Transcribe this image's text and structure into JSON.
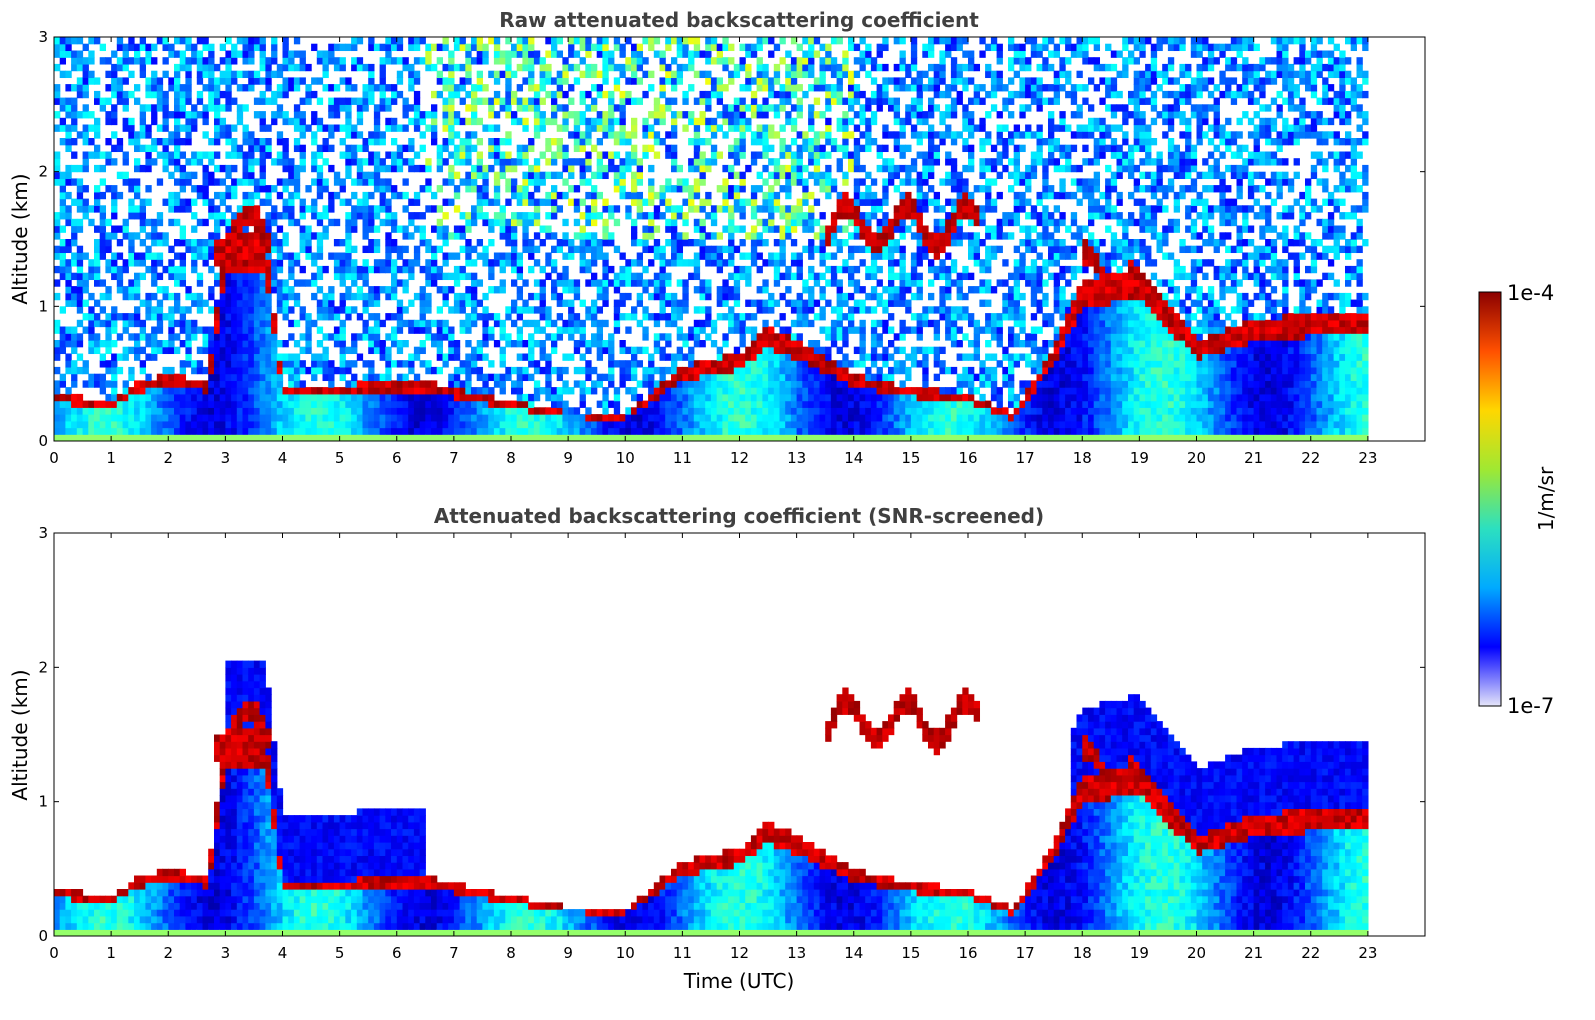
{
  "chart_data": [
    {
      "type": "heatmap",
      "title": "Raw attenuated backscattering coefficient",
      "xlabel": "",
      "ylabel": "Altitude (km)",
      "xlim": [
        0,
        24
      ],
      "ylim": [
        0,
        3
      ],
      "xticks": [
        "0",
        "1",
        "2",
        "3",
        "4",
        "5",
        "6",
        "7",
        "8",
        "9",
        "10",
        "11",
        "12",
        "13",
        "14",
        "15",
        "16",
        "17",
        "18",
        "19",
        "20",
        "21",
        "22",
        "23"
      ],
      "yticks": [
        "0",
        "1",
        "2",
        "3"
      ],
      "data_end_hour": 23,
      "boundary_layer_top_km": [
        [
          0,
          0.35
        ],
        [
          1,
          0.3
        ],
        [
          1.5,
          0.45
        ],
        [
          2,
          0.5
        ],
        [
          2.7,
          0.45
        ],
        [
          3,
          1.55
        ],
        [
          3.7,
          1.55
        ],
        [
          4,
          0.4
        ],
        [
          6.5,
          0.45
        ],
        [
          7,
          0.4
        ],
        [
          8,
          0.3
        ],
        [
          9,
          0.22
        ],
        [
          10,
          0.2
        ],
        [
          11,
          0.55
        ],
        [
          12,
          0.65
        ],
        [
          12.5,
          0.85
        ],
        [
          13,
          0.75
        ],
        [
          14,
          0.5
        ],
        [
          15,
          0.4
        ],
        [
          16,
          0.35
        ],
        [
          16.8,
          0.2
        ],
        [
          17.5,
          0.7
        ],
        [
          18,
          1.2
        ],
        [
          19,
          1.3
        ],
        [
          20,
          0.75
        ],
        [
          21,
          0.9
        ],
        [
          22,
          0.95
        ],
        [
          23,
          0.95
        ]
      ],
      "cloud_layers": [
        {
          "start_h": 2.8,
          "end_h": 3.8,
          "altitude_km": 1.55
        },
        {
          "start_h": 13.5,
          "end_h": 16.2,
          "altitude_km": 1.6
        },
        {
          "start_h": 18.0,
          "end_h": 18.9,
          "altitude_km": 1.25
        }
      ]
    },
    {
      "type": "heatmap",
      "title": "Attenuated backscattering coefficient (SNR-screened)",
      "xlabel": "Time (UTC)",
      "ylabel": "Altitude (km)",
      "xlim": [
        0,
        24
      ],
      "ylim": [
        0,
        3
      ],
      "xticks": [
        "0",
        "1",
        "2",
        "3",
        "4",
        "5",
        "6",
        "7",
        "8",
        "9",
        "10",
        "11",
        "12",
        "13",
        "14",
        "15",
        "16",
        "17",
        "18",
        "19",
        "20",
        "21",
        "22",
        "23"
      ],
      "yticks": [
        "0",
        "1",
        "2",
        "3"
      ],
      "data_end_hour": 23
    }
  ],
  "colorbar": {
    "label": "1/m/sr",
    "max_label": "1e-4",
    "min_label": "1e-7",
    "scale": "log",
    "colormap": "jet",
    "colors": [
      "#e6e6fa",
      "#0000ff",
      "#00aaff",
      "#2ce0c0",
      "#a0e832",
      "#ffd700",
      "#ff5000",
      "#8b0000"
    ]
  }
}
